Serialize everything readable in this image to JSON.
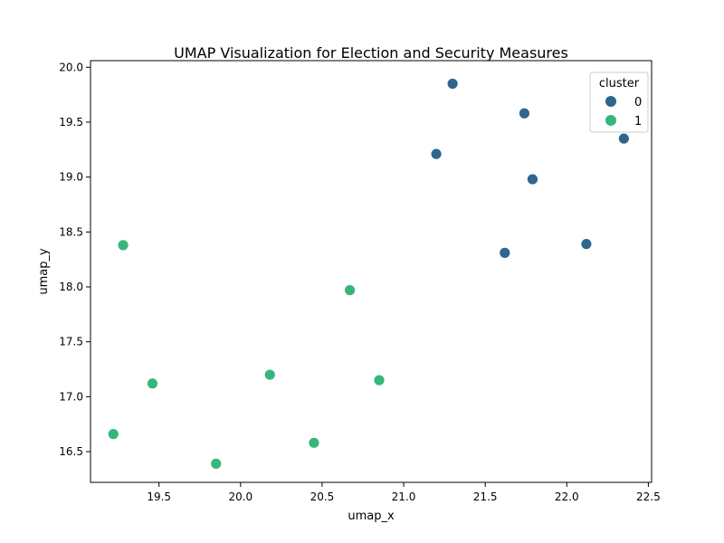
{
  "chart_data": {
    "type": "scatter",
    "title": "UMAP Visualization for Election and Security Measures",
    "xlabel": "umap_x",
    "ylabel": "umap_y",
    "xlim": [
      19.08,
      22.52
    ],
    "ylim": [
      16.22,
      20.06
    ],
    "xticks": [
      "19.5",
      "20.0",
      "20.5",
      "21.0",
      "21.5",
      "22.0",
      "22.5"
    ],
    "yticks": [
      "16.5",
      "17.0",
      "17.5",
      "18.0",
      "18.5",
      "19.0",
      "19.5",
      "20.0"
    ],
    "grid": false,
    "legend": {
      "title": "cluster",
      "position": "top-right"
    },
    "series": [
      {
        "name": "0",
        "color": "#2f6690",
        "points": [
          {
            "x": 21.3,
            "y": 19.85
          },
          {
            "x": 21.74,
            "y": 19.58
          },
          {
            "x": 22.35,
            "y": 19.35
          },
          {
            "x": 21.2,
            "y": 19.21
          },
          {
            "x": 21.79,
            "y": 18.98
          },
          {
            "x": 22.12,
            "y": 18.39
          },
          {
            "x": 21.62,
            "y": 18.31
          }
        ]
      },
      {
        "name": "1",
        "color": "#35b779",
        "points": [
          {
            "x": 19.28,
            "y": 18.38
          },
          {
            "x": 20.67,
            "y": 17.97
          },
          {
            "x": 20.18,
            "y": 17.2
          },
          {
            "x": 19.46,
            "y": 17.12
          },
          {
            "x": 20.85,
            "y": 17.15
          },
          {
            "x": 19.22,
            "y": 16.66
          },
          {
            "x": 20.45,
            "y": 16.58
          },
          {
            "x": 19.85,
            "y": 16.39
          }
        ]
      }
    ]
  }
}
